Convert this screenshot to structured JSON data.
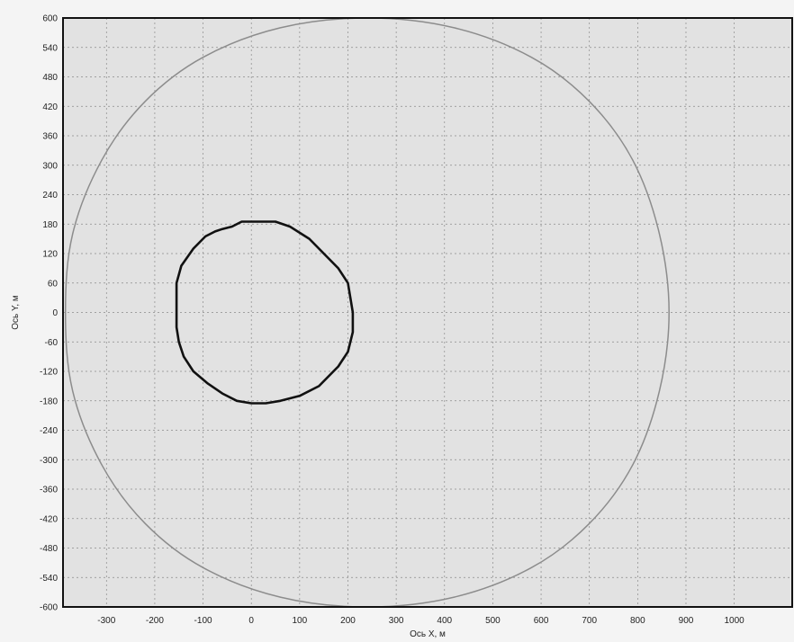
{
  "chart_data": {
    "type": "line",
    "title": "",
    "xlabel": "Ось X, м",
    "ylabel": "Ось Y, м",
    "xlim": [
      -390,
      1120
    ],
    "ylim": [
      -600,
      600
    ],
    "x_ticks": [
      -300,
      -200,
      -100,
      0,
      100,
      200,
      300,
      400,
      500,
      600,
      700,
      800,
      900,
      1000
    ],
    "y_ticks": [
      600,
      540,
      480,
      420,
      360,
      300,
      240,
      180,
      120,
      60,
      0,
      -60,
      -120,
      -180,
      -240,
      -300,
      -360,
      -420,
      -480,
      -540,
      -600
    ],
    "grid": true,
    "legend": "none",
    "colors": {
      "plot_background": "#e2e2e2",
      "grid": "#8a8a8a",
      "outer_series": "#8c8c8c",
      "inner_series": "#111111",
      "axis": "#111111"
    },
    "series": [
      {
        "style": "thin-grey",
        "points": [
          [
            865,
            0
          ],
          [
            845,
            160
          ],
          [
            790,
            310
          ],
          [
            700,
            430
          ],
          [
            580,
            520
          ],
          [
            420,
            580
          ],
          [
            240,
            600
          ],
          [
            60,
            580
          ],
          [
            -100,
            520
          ],
          [
            -220,
            430
          ],
          [
            -310,
            310
          ],
          [
            -370,
            160
          ],
          [
            -385,
            0
          ],
          [
            -370,
            -160
          ],
          [
            -310,
            -310
          ],
          [
            -220,
            -430
          ],
          [
            -100,
            -520
          ],
          [
            60,
            -580
          ],
          [
            240,
            -600
          ],
          [
            420,
            -580
          ],
          [
            580,
            -520
          ],
          [
            700,
            -430
          ],
          [
            790,
            -310
          ],
          [
            845,
            -160
          ],
          [
            865,
            0
          ]
        ]
      },
      {
        "style": "thick-black",
        "points": [
          [
            -155,
            0
          ],
          [
            -155,
            60
          ],
          [
            -145,
            95
          ],
          [
            -120,
            130
          ],
          [
            -95,
            155
          ],
          [
            -75,
            165
          ],
          [
            -60,
            170
          ],
          [
            -40,
            175
          ],
          [
            -20,
            185
          ],
          [
            0,
            185
          ],
          [
            20,
            185
          ],
          [
            50,
            185
          ],
          [
            80,
            175
          ],
          [
            120,
            150
          ],
          [
            150,
            120
          ],
          [
            180,
            90
          ],
          [
            200,
            60
          ],
          [
            205,
            30
          ],
          [
            210,
            0
          ],
          [
            210,
            -40
          ],
          [
            200,
            -80
          ],
          [
            180,
            -110
          ],
          [
            140,
            -150
          ],
          [
            100,
            -170
          ],
          [
            60,
            -180
          ],
          [
            30,
            -185
          ],
          [
            0,
            -185
          ],
          [
            -30,
            -180
          ],
          [
            -60,
            -165
          ],
          [
            -90,
            -145
          ],
          [
            -120,
            -120
          ],
          [
            -140,
            -90
          ],
          [
            -150,
            -60
          ],
          [
            -155,
            -30
          ],
          [
            -155,
            0
          ]
        ]
      }
    ]
  }
}
